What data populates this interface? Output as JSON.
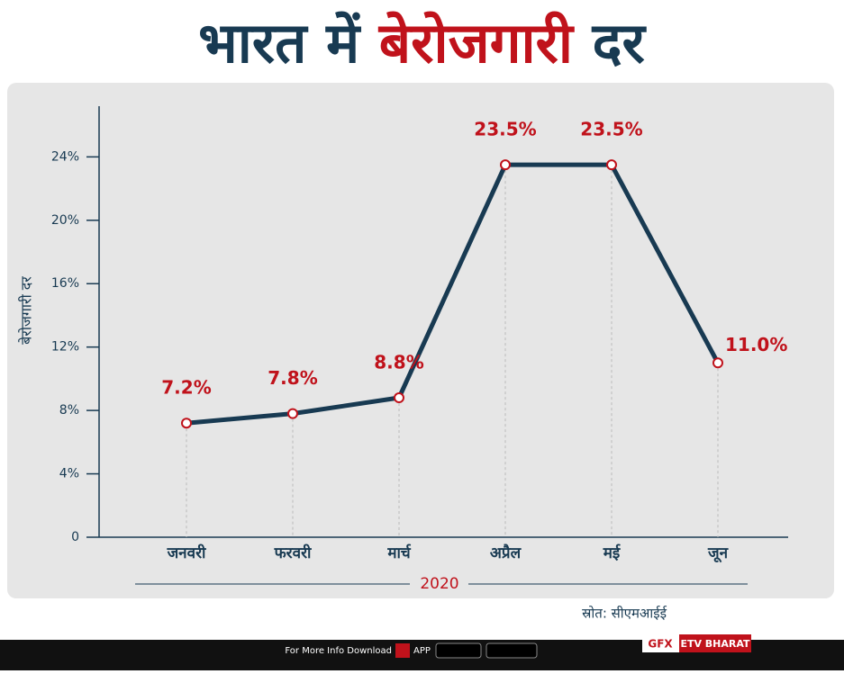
{
  "chart_data": {
    "type": "line",
    "title_parts": [
      "भारत में",
      "बेरोजगारी",
      "दर"
    ],
    "y_label": "बेरोजगारी दर",
    "x_label": "2020",
    "categories": [
      "जनवरी",
      "फरवरी",
      "मार्च",
      "अप्रैल",
      "मई",
      "जून"
    ],
    "values": [
      7.2,
      7.8,
      8.8,
      23.5,
      23.5,
      11.0
    ],
    "value_labels": [
      "7.2%",
      "7.8%",
      "8.8%",
      "23.5%",
      "23.5%",
      "11.0%"
    ],
    "color": "#183a52",
    "marker_color": "#c0121b",
    "ylim": [
      0,
      27.2
    ],
    "yticks": [
      0,
      {
        "value": 4,
        "label": "4%"
      },
      {
        "value": 8,
        "label": "8%"
      },
      {
        "value": 12,
        "label": "12%"
      },
      {
        "value": 16,
        "label": "16%"
      },
      {
        "value": 20,
        "label": "20%"
      },
      {
        "value": 24,
        "label": "24%"
      }
    ]
  },
  "source": "स्रोत: सीएमआईई",
  "footer": {
    "download": "For More Info Download",
    "app": "APP",
    "gfx": "GFX",
    "brand": "ETV BHARAT"
  }
}
